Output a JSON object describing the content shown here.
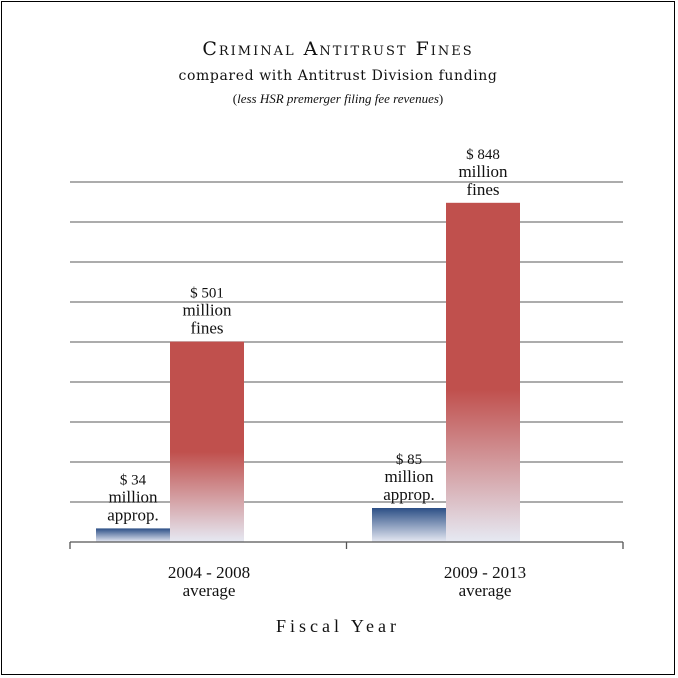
{
  "chart_data": {
    "type": "bar",
    "title": "Criminal Antitrust Fines",
    "subtitle": "compared with Antitrust Division funding",
    "subtitle_note": "less HSR premerger filing fee revenues",
    "xlabel": "Fiscal Year",
    "ylabel": "",
    "categories": [
      [
        "2004 - 2008",
        "average"
      ],
      [
        "2009 - 2013",
        "average"
      ]
    ],
    "ylim": [
      0,
      900
    ],
    "grid": true,
    "legend": "none",
    "series": [
      {
        "values": [
          34,
          85
        ],
        "color": "#2c4f86",
        "fade_color": "#e6e9f3",
        "labels": [
          [
            "$ 34",
            "million",
            "approp."
          ],
          [
            "$ 85",
            "million",
            "approp."
          ]
        ]
      },
      {
        "values": [
          501,
          848
        ],
        "color": "#c0504d",
        "fade_color": "#e6e9f3",
        "labels": [
          [
            "$ 501",
            "million",
            "fines"
          ],
          [
            "$ 848",
            "million",
            "fines"
          ]
        ]
      }
    ]
  }
}
